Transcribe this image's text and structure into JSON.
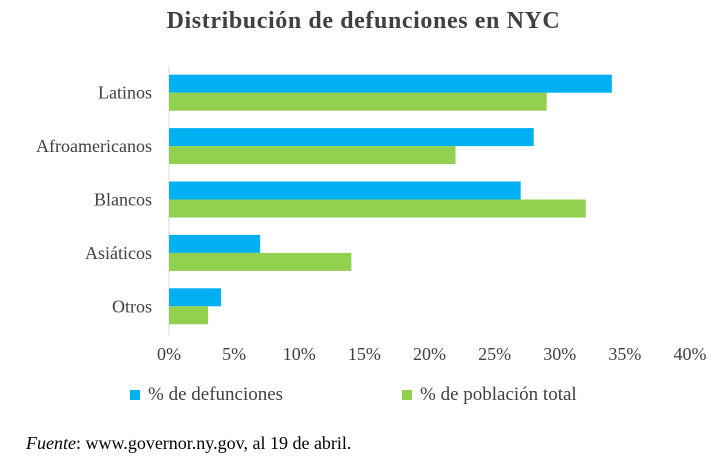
{
  "chart_data": {
    "type": "bar",
    "orientation": "horizontal",
    "title": "Distribución de defunciones en NYC",
    "categories": [
      "Latinos",
      "Afroamericanos",
      "Blancos",
      "Asiáticos",
      "Otros"
    ],
    "series": [
      {
        "name": "% de defunciones",
        "values": [
          34,
          28,
          27,
          7,
          4
        ],
        "color": "#00b0f0"
      },
      {
        "name": "% de población total",
        "values": [
          29,
          22,
          32,
          14,
          3
        ],
        "color": "#92d050"
      }
    ],
    "xlim": [
      0,
      40
    ],
    "xticks": [
      0,
      5,
      10,
      15,
      20,
      25,
      30,
      35,
      40
    ],
    "xtick_labels": [
      "0%",
      "5%",
      "10%",
      "15%",
      "20%",
      "25%",
      "30%",
      "35%",
      "40%"
    ],
    "grid": false,
    "legend_position": "bottom"
  },
  "source": {
    "label": "Fuente",
    "text": ": www.governor.ny.gov, al 19 de abril."
  }
}
